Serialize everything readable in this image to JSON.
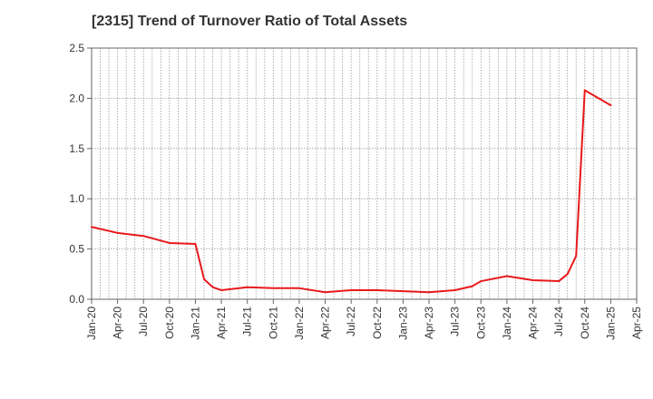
{
  "chart_data": {
    "type": "line",
    "title": "[2315]  Trend of Turnover Ratio of Total Assets",
    "xlabel": "",
    "ylabel": "",
    "ylim": [
      0,
      2.5
    ],
    "yticks": [
      "0.0",
      "0.5",
      "1.0",
      "1.5",
      "2.0",
      "2.5"
    ],
    "xticks": [
      "Jan-20",
      "Apr-20",
      "Jul-20",
      "Oct-20",
      "Jan-21",
      "Apr-21",
      "Jul-21",
      "Oct-21",
      "Jan-22",
      "Apr-22",
      "Jul-22",
      "Oct-22",
      "Jan-23",
      "Apr-23",
      "Jul-23",
      "Oct-23",
      "Jan-24",
      "Apr-24",
      "Jul-24",
      "Oct-24",
      "Jan-25",
      "Apr-25"
    ],
    "grid": true,
    "series": [
      {
        "color": "#e8191b",
        "points": [
          [
            "Jan-20",
            0.72
          ],
          [
            "Apr-20",
            0.66
          ],
          [
            "Jul-20",
            0.63
          ],
          [
            "Oct-20",
            0.56
          ],
          [
            "Jan-21",
            0.55
          ],
          [
            "Feb-21",
            0.2
          ],
          [
            "Mar-21",
            0.12
          ],
          [
            "Apr-21",
            0.09
          ],
          [
            "Jul-21",
            0.12
          ],
          [
            "Oct-21",
            0.11
          ],
          [
            "Jan-22",
            0.11
          ],
          [
            "Apr-22",
            0.07
          ],
          [
            "Jul-22",
            0.09
          ],
          [
            "Oct-22",
            0.09
          ],
          [
            "Jan-23",
            0.08
          ],
          [
            "Apr-23",
            0.07
          ],
          [
            "Jul-23",
            0.09
          ],
          [
            "Sep-23",
            0.13
          ],
          [
            "Oct-23",
            0.18
          ],
          [
            "Jan-24",
            0.23
          ],
          [
            "Apr-24",
            0.19
          ],
          [
            "Jul-24",
            0.18
          ],
          [
            "Aug-24",
            0.25
          ],
          [
            "Sep-24",
            0.43
          ],
          [
            "Oct-24",
            2.08
          ],
          [
            "Jan-25",
            1.93
          ]
        ]
      }
    ]
  }
}
